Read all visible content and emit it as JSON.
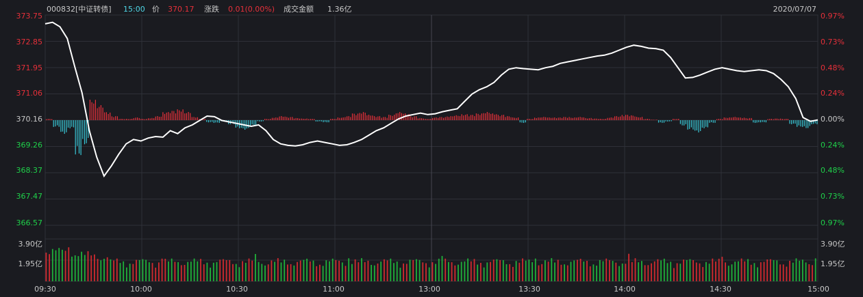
{
  "header": {
    "code": "000832[中证转债]",
    "time": "15:00",
    "price_label": "价",
    "price": "370.17",
    "change_label": "涨跌",
    "change": "0.01(0.00%)",
    "turnover_label": "成交金额",
    "turnover": "1.36亿",
    "date": "2020/07/07"
  },
  "colors": {
    "background": "#1a1b20",
    "grid": "#2f3038",
    "up": "#e8303a",
    "down": "#38c7d6",
    "price_line": "#ffffff",
    "cyan_text": "#4fd6e6",
    "green_text": "#1fd14a",
    "red_text": "#e8303a",
    "vol_up": "#d12a2f",
    "vol_down": "#1fb13a"
  },
  "chart_data": {
    "type": "line",
    "x_labels": [
      "09:30",
      "10:00",
      "10:30",
      "11:00",
      "13:00",
      "13:30",
      "14:00",
      "14:30",
      "15:00"
    ],
    "left_axis": [
      "373.75",
      "372.85",
      "371.95",
      "371.06",
      "370.16",
      "369.26",
      "368.37",
      "367.47",
      "366.57"
    ],
    "right_axis": [
      "0.97%",
      "0.73%",
      "0.48%",
      "0.24%",
      "0.00%",
      "0.24%",
      "0.48%",
      "0.73%",
      "0.97%"
    ],
    "volume_axis": [
      "3.90亿",
      "1.95亿"
    ],
    "ylim": [
      366.57,
      373.75
    ],
    "prev_close": 370.16,
    "price_series": [
      373.45,
      373.5,
      373.35,
      372.95,
      372.0,
      371.1,
      369.8,
      368.9,
      368.25,
      368.6,
      369.0,
      369.35,
      369.5,
      369.45,
      369.55,
      369.6,
      369.58,
      369.8,
      369.7,
      369.9,
      370.0,
      370.15,
      370.3,
      370.28,
      370.15,
      370.1,
      370.05,
      370.0,
      369.95,
      370.0,
      369.8,
      369.5,
      369.35,
      369.3,
      369.28,
      369.32,
      369.4,
      369.45,
      369.4,
      369.35,
      369.3,
      369.32,
      369.4,
      369.5,
      369.65,
      369.8,
      369.9,
      370.05,
      370.2,
      370.3,
      370.35,
      370.4,
      370.35,
      370.38,
      370.45,
      370.5,
      370.55,
      370.8,
      371.05,
      371.2,
      371.3,
      371.45,
      371.7,
      371.9,
      371.95,
      371.92,
      371.9,
      371.88,
      371.95,
      372.0,
      372.1,
      372.15,
      372.2,
      372.25,
      372.3,
      372.35,
      372.38,
      372.45,
      372.55,
      372.65,
      372.72,
      372.68,
      372.62,
      372.6,
      372.55,
      372.3,
      371.95,
      371.6,
      371.62,
      371.7,
      371.8,
      371.9,
      371.95,
      371.9,
      371.85,
      371.82,
      371.85,
      371.88,
      371.85,
      371.75,
      371.55,
      371.3,
      370.9,
      370.25,
      370.12,
      370.17
    ],
    "flow_series": [
      0.05,
      -0.25,
      -0.5,
      -0.3,
      -1.3,
      -0.9,
      0.75,
      0.55,
      0.3,
      0.15,
      0.05,
      0.05,
      0.1,
      0.05,
      0.08,
      0.15,
      0.3,
      0.35,
      0.4,
      0.3,
      0.12,
      0.05,
      -0.08,
      -0.1,
      -0.05,
      -0.15,
      -0.3,
      -0.35,
      -0.2,
      -0.05,
      0.05,
      0.1,
      0.15,
      0.12,
      0.08,
      0.06,
      0.05,
      -0.05,
      -0.08,
      0.05,
      0.1,
      0.15,
      0.25,
      0.3,
      0.2,
      0.15,
      0.12,
      0.2,
      0.3,
      0.25,
      0.15,
      0.08,
      0.05,
      0.1,
      0.12,
      0.15,
      0.18,
      0.22,
      0.2,
      0.25,
      0.3,
      0.25,
      0.2,
      0.15,
      0.1,
      -0.1,
      0.05,
      0.1,
      0.12,
      0.1,
      0.1,
      0.12,
      0.1,
      0.12,
      0.08,
      0.06,
      0.05,
      0.1,
      0.15,
      0.2,
      0.18,
      0.12,
      0.05,
      0.02,
      -0.1,
      -0.05,
      0.05,
      -0.2,
      -0.35,
      -0.45,
      -0.3,
      -0.1,
      0.05,
      0.1,
      0.12,
      0.1,
      0.08,
      -0.1,
      -0.08,
      0.05,
      0.06,
      0.05,
      -0.15,
      -0.25,
      -0.3,
      -0.15
    ]
  }
}
